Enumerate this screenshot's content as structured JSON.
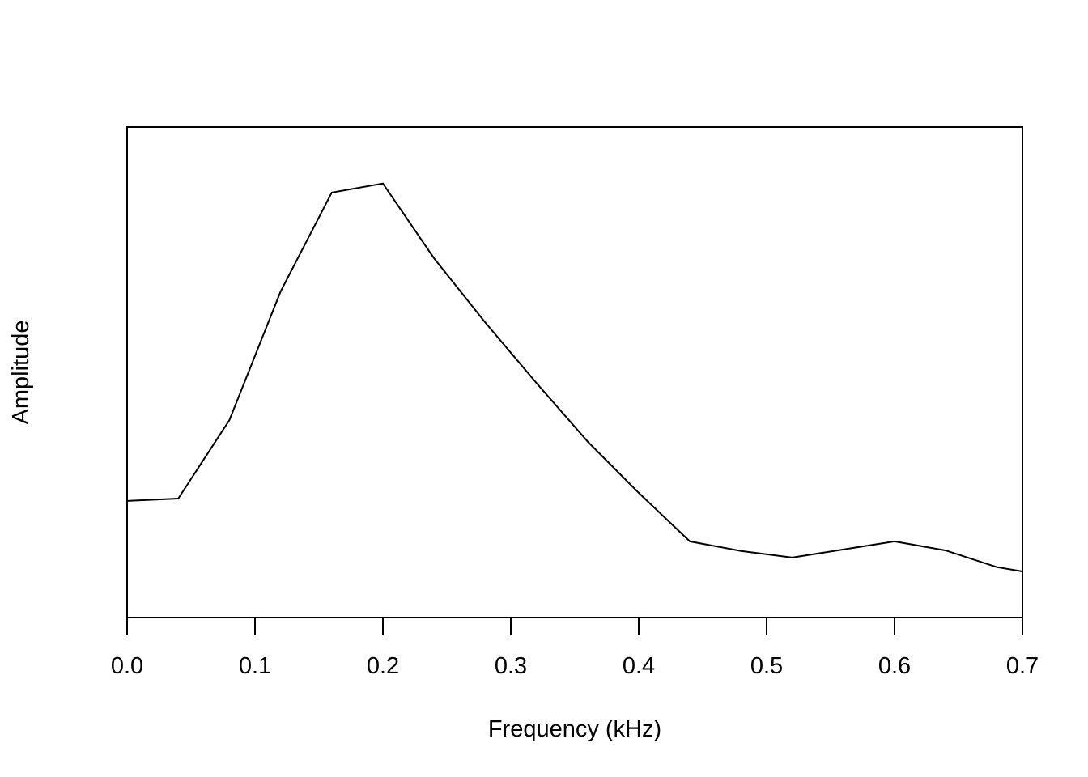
{
  "chart_data": {
    "type": "line",
    "title": "",
    "xlabel": "Frequency (kHz)",
    "ylabel": "Amplitude",
    "xlim": [
      0,
      0.7
    ],
    "ylim": [
      0,
      1
    ],
    "x_ticks": [
      "0.0",
      "0.1",
      "0.2",
      "0.3",
      "0.4",
      "0.5",
      "0.6",
      "0.7"
    ],
    "y_ticks_shown": false,
    "grid": false,
    "legend": "none",
    "line_color": "#000000",
    "series": [
      {
        "x": [
          0.0,
          0.04,
          0.08,
          0.12,
          0.16,
          0.2,
          0.24,
          0.28,
          0.32,
          0.36,
          0.4,
          0.44,
          0.48,
          0.52,
          0.56,
          0.6,
          0.64,
          0.68,
          0.7
        ],
        "y": [
          0.245,
          0.25,
          0.415,
          0.685,
          0.893,
          0.912,
          0.755,
          0.62,
          0.493,
          0.37,
          0.262,
          0.16,
          0.14,
          0.126,
          0.143,
          0.16,
          0.141,
          0.106,
          0.097
        ]
      }
    ]
  }
}
